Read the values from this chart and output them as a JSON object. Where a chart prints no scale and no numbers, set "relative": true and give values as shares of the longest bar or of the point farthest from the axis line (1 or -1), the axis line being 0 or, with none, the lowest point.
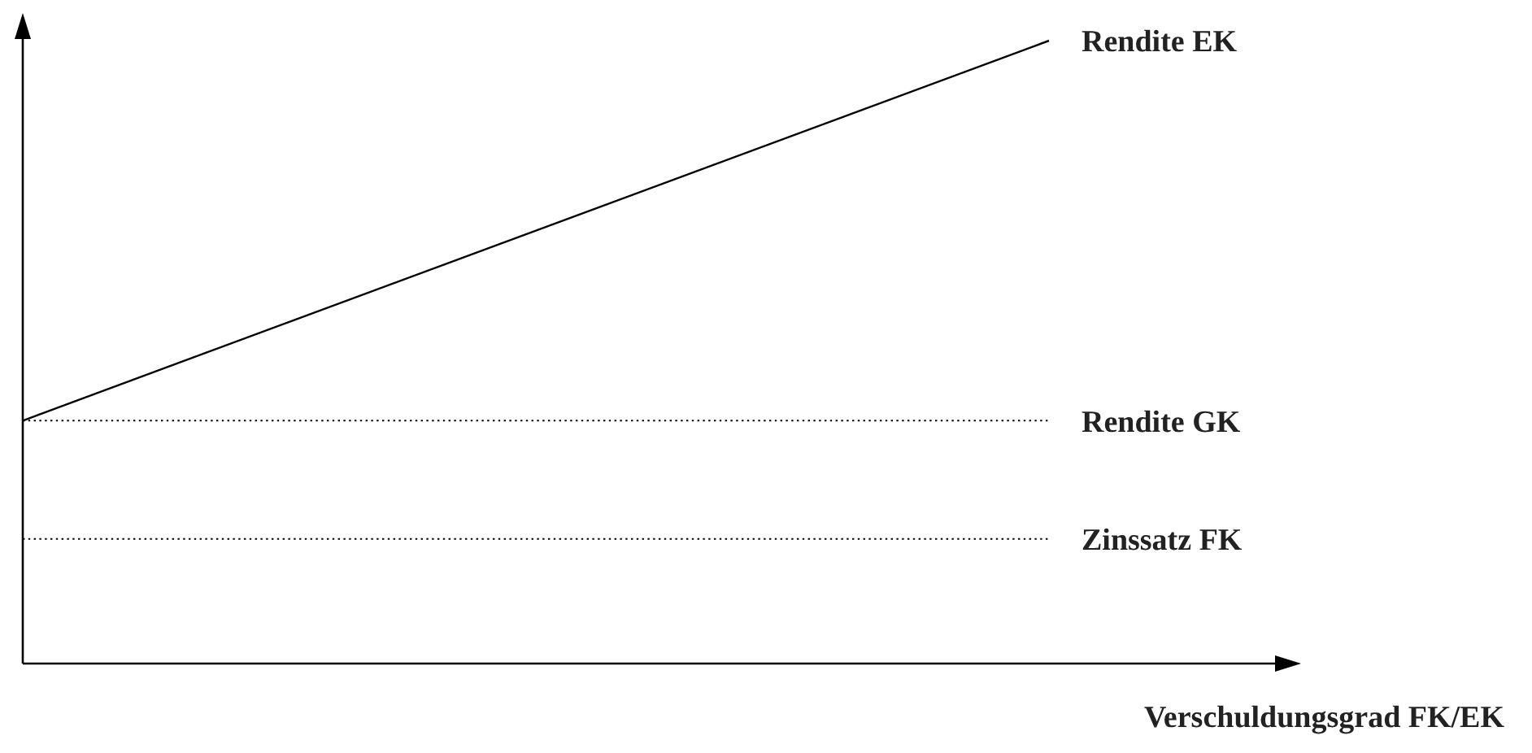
{
  "chart_data": {
    "type": "line",
    "relative": true,
    "xlabel": "Verschuldungsgrad FK/EK",
    "categories": [
      null,
      null
    ],
    "series": [
      {
        "name": "Rendite EK",
        "color": "#000000",
        "values": [
          0.39,
          1
        ],
        "line_style": "solid"
      },
      {
        "name": "Rendite GK",
        "color": "#000000",
        "values": [
          0.39,
          0.39
        ],
        "line_style": "dotted"
      },
      {
        "name": "Zinssatz FK",
        "color": "#000000",
        "values": [
          0.2,
          0.2
        ],
        "line_style": "dotted"
      }
    ]
  }
}
